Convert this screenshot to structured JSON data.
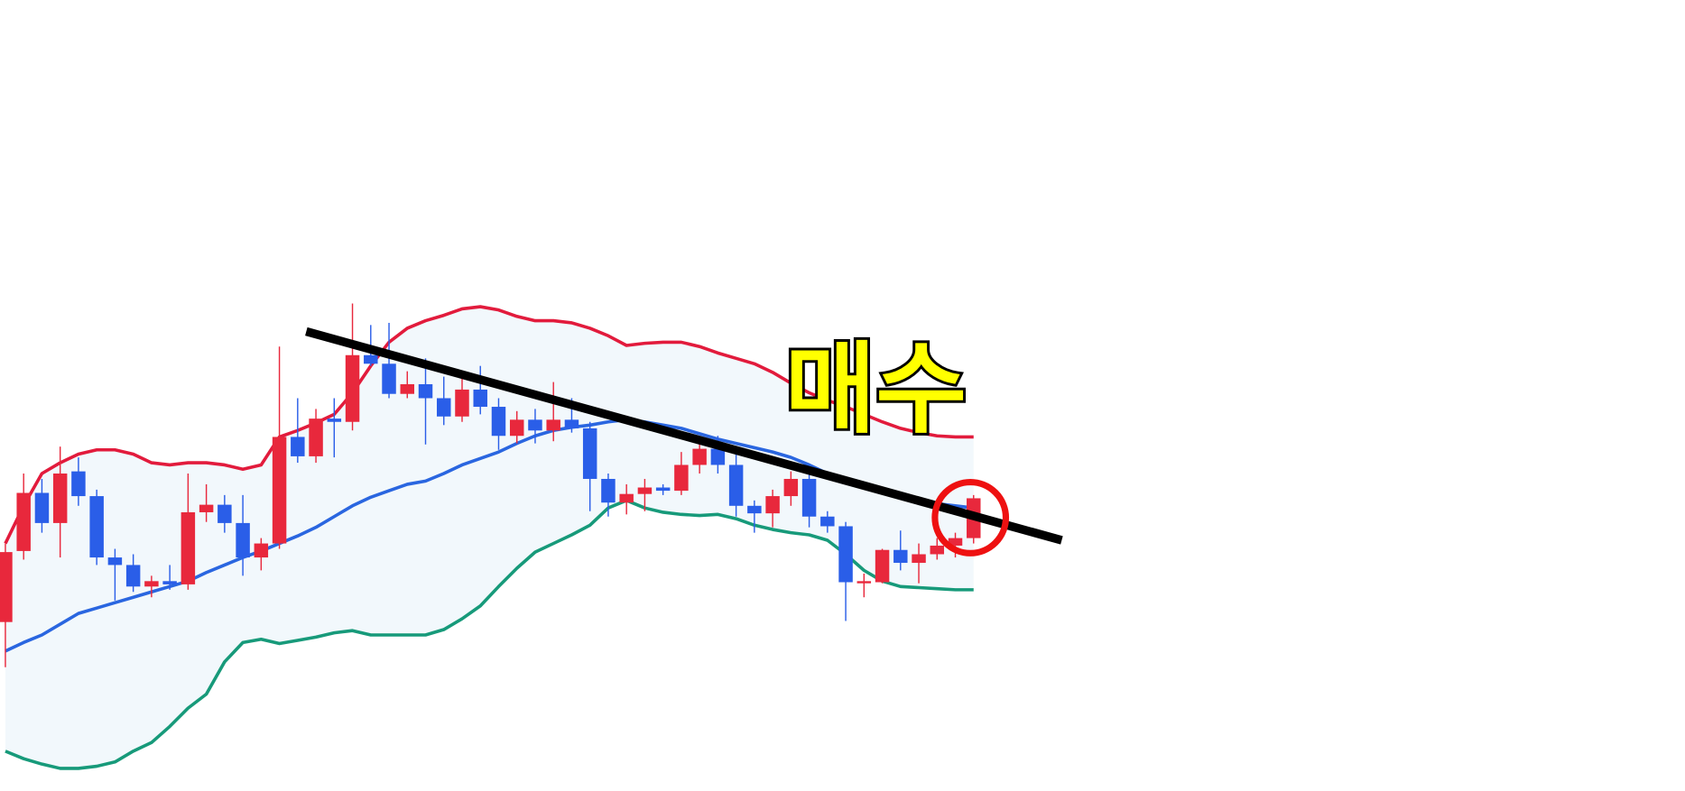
{
  "chart_data": {
    "type": "candlestick",
    "annotation": "매수",
    "categories": [
      null,
      null,
      null,
      null,
      null,
      null,
      null,
      null,
      null,
      null,
      null,
      null,
      null,
      null,
      null,
      null,
      null,
      null,
      null,
      null,
      null,
      null,
      null,
      null,
      null,
      null,
      null,
      null,
      null,
      null,
      null,
      null,
      null,
      null,
      null,
      null,
      null,
      null,
      null,
      null,
      null,
      null,
      null,
      null,
      null,
      null,
      null,
      null,
      null,
      null,
      null,
      null,
      null,
      null
    ],
    "open": [
      157,
      223,
      277,
      249,
      297,
      274,
      217,
      210,
      190,
      195,
      192,
      259,
      266,
      249,
      217,
      230,
      329,
      311,
      346,
      343,
      405,
      397,
      369,
      378,
      365,
      348,
      373,
      357,
      330,
      345,
      335,
      345,
      337,
      290,
      268,
      276,
      282,
      279,
      303,
      318,
      303,
      265,
      258,
      274,
      290,
      255,
      246,
      194,
      194,
      224,
      212,
      220,
      228,
      235
    ],
    "high": [
      230,
      295,
      290,
      320,
      310,
      280,
      225,
      220,
      200,
      210,
      295,
      285,
      275,
      275,
      235,
      413,
      365,
      355,
      365,
      453,
      433,
      435,
      390,
      402,
      385,
      385,
      395,
      365,
      353,
      355,
      380,
      365,
      343,
      295,
      285,
      290,
      285,
      315,
      323,
      330,
      315,
      270,
      280,
      297,
      295,
      260,
      250,
      202,
      225,
      242,
      230,
      235,
      240,
      275
    ],
    "low": [
      115,
      215,
      240,
      217,
      265,
      210,
      177,
      185,
      180,
      187,
      187,
      250,
      240,
      200,
      205,
      225,
      305,
      305,
      310,
      335,
      395,
      365,
      365,
      322,
      340,
      343,
      350,
      317,
      323,
      323,
      325,
      333,
      260,
      255,
      257,
      260,
      275,
      275,
      295,
      295,
      255,
      240,
      245,
      265,
      245,
      240,
      158,
      180,
      193,
      205,
      193,
      215,
      217,
      230
    ],
    "close": [
      222,
      277,
      249,
      295,
      274,
      217,
      210,
      190,
      195,
      192,
      259,
      266,
      249,
      217,
      230,
      329,
      311,
      346,
      343,
      405,
      397,
      369,
      378,
      365,
      348,
      373,
      357,
      330,
      345,
      335,
      345,
      337,
      290,
      268,
      276,
      282,
      279,
      303,
      318,
      303,
      265,
      258,
      274,
      290,
      255,
      246,
      194,
      195,
      224,
      212,
      220,
      228,
      235,
      272
    ],
    "up_color": "#e8283c",
    "down_color": "#2a5ee8",
    "bands": {
      "upper": {
        "color": "#e21b3c",
        "values": [
          230,
          265,
          295,
          305,
          313,
          317,
          317,
          313,
          305,
          303,
          305,
          305,
          303,
          299,
          303,
          329,
          335,
          342,
          350,
          370,
          395,
          417,
          430,
          437,
          442,
          448,
          450,
          447,
          441,
          437,
          437,
          435,
          430,
          423,
          414,
          416,
          417,
          417,
          413,
          407,
          402,
          397,
          389,
          379,
          370,
          363,
          357,
          350,
          343,
          337,
          333,
          330,
          329,
          329
        ]
      },
      "middle": {
        "color": "#2a66e0",
        "values": [
          130,
          138,
          145,
          155,
          165,
          170,
          175,
          180,
          185,
          190,
          195,
          203,
          210,
          217,
          223,
          230,
          237,
          245,
          255,
          265,
          273,
          279,
          285,
          288,
          295,
          303,
          309,
          315,
          323,
          330,
          335,
          338,
          340,
          343,
          345,
          343,
          340,
          337,
          332,
          327,
          323,
          319,
          315,
          310,
          303,
          295,
          289,
          285,
          280,
          275,
          271,
          267,
          265,
          263
        ]
      },
      "lower": {
        "color": "#179a7a",
        "values": [
          37,
          30,
          25,
          21,
          21,
          23,
          27,
          37,
          45,
          60,
          77,
          90,
          120,
          138,
          141,
          137,
          140,
          143,
          147,
          149,
          145,
          145,
          145,
          145,
          150,
          160,
          172,
          190,
          207,
          222,
          230,
          238,
          247,
          263,
          270,
          263,
          259,
          257,
          256,
          257,
          253,
          247,
          243,
          240,
          238,
          233,
          220,
          205,
          195,
          190,
          189,
          188,
          187,
          187
        ]
      }
    },
    "band_fill": "#f2f8fc",
    "ylim": [
      0,
      735
    ]
  }
}
